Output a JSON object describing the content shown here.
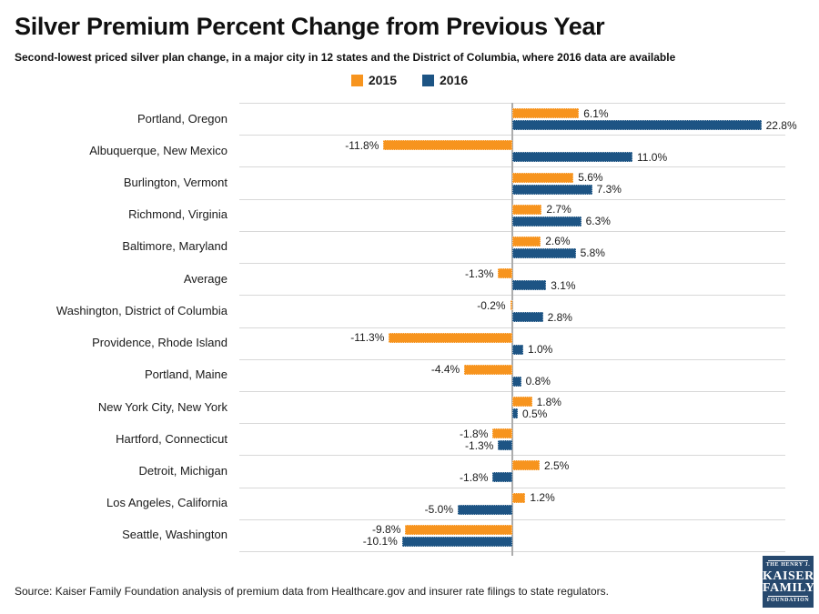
{
  "header": {
    "title": "Silver Premium Percent Change from Previous Year",
    "subtitle": "Second-lowest priced silver plan change, in a major city in 12 states and the District of Columbia, where 2016 data are available"
  },
  "chart_data": {
    "type": "bar",
    "orientation": "horizontal",
    "title": "Silver Premium Percent Change from Previous Year",
    "subtitle": "Second-lowest priced silver plan change, in a major city in 12 states and the District of Columbia, where 2016 data are available",
    "legend_position": "top-center",
    "grid": "category-separator-lines",
    "value_labels": "on-bar-ends, one decimal, percent",
    "xlim": [
      -25,
      25
    ],
    "categories": [
      "Portland, Oregon",
      "Albuquerque, New Mexico",
      "Burlington, Vermont",
      "Richmond, Virginia",
      "Baltimore, Maryland",
      "Average",
      "Washington, District of Columbia",
      "Providence, Rhode Island",
      "Portland, Maine",
      "New York City, New York",
      "Hartford, Connecticut",
      "Detroit, Michigan",
      "Los Angeles, California",
      "Seattle, Washington"
    ],
    "series": [
      {
        "name": "2015",
        "color": "#F7941E",
        "values": [
          6.1,
          -11.8,
          5.6,
          2.7,
          2.6,
          -1.3,
          -0.2,
          -11.3,
          -4.4,
          1.8,
          -1.8,
          2.5,
          1.2,
          -9.8
        ]
      },
      {
        "name": "2016",
        "color": "#1D5484",
        "values": [
          22.8,
          11.0,
          7.3,
          6.3,
          5.8,
          3.1,
          2.8,
          1.0,
          0.8,
          0.5,
          -1.3,
          -1.8,
          -5.0,
          -10.1
        ]
      }
    ]
  },
  "colors": {
    "series_2015": "#F7941E",
    "series_2016": "#1D5484",
    "gridline": "#D8D8D8",
    "zero_axis": "#ACACAC",
    "logo_background": "#27496E"
  },
  "footer": {
    "source": "Source: Kaiser Family Foundation analysis of premium data from Healthcare.gov and insurer rate filings to state regulators.",
    "logo_lines": [
      "THE HENRY J.",
      "KAISER",
      "FAMILY",
      "FOUNDATION"
    ]
  }
}
